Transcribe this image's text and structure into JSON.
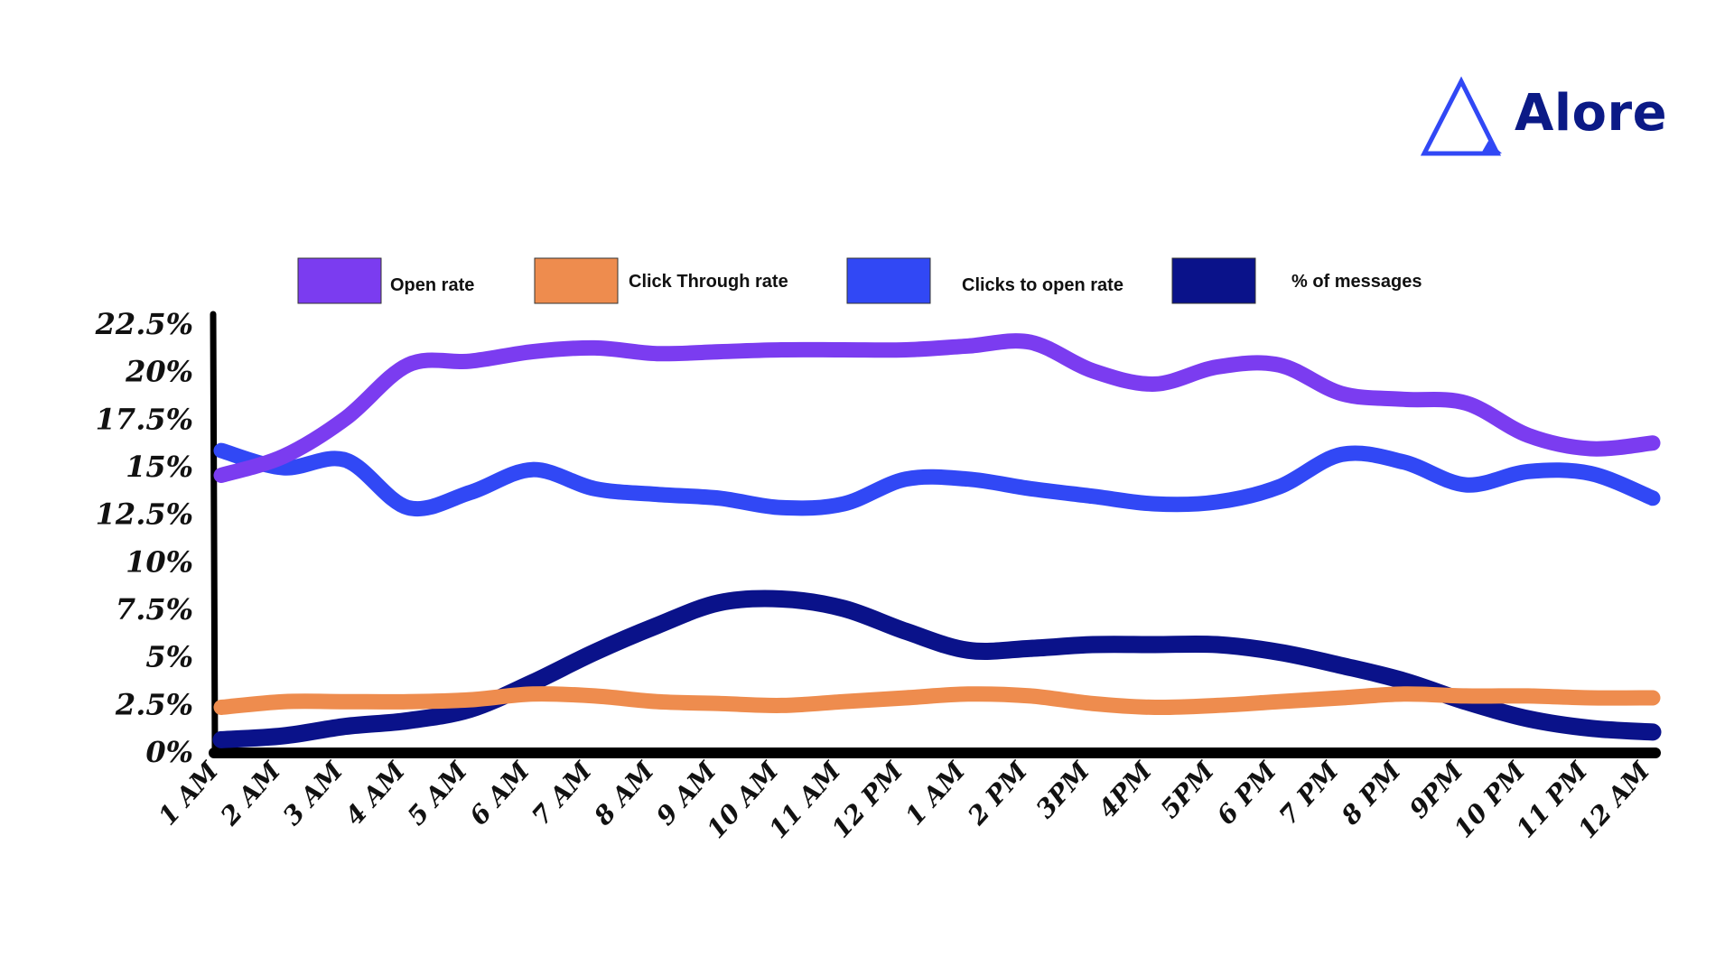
{
  "brand": {
    "name": "Alore",
    "logo_icon": "triangle-logo-icon",
    "color": "#0b1a86"
  },
  "chart_data": {
    "type": "line",
    "title": "",
    "xlabel": "",
    "ylabel": "",
    "x": [
      "1 AM",
      "2 AM",
      "3 AM",
      "4 AM",
      "5 AM",
      "6 AM",
      "7 AM",
      "8 AM",
      "9 AM",
      "10 AM",
      "11 AM",
      "12 PM",
      "1 AM",
      "2 PM",
      "3PM",
      "4PM",
      "5PM",
      "6 PM",
      "7 PM",
      "8 PM",
      "9PM",
      "10 PM",
      "11 PM",
      "12 AM"
    ],
    "ylim": [
      0,
      22.5
    ],
    "yticks": [
      {
        "value": 0,
        "label": "0%"
      },
      {
        "value": 2.5,
        "label": "2.5%"
      },
      {
        "value": 5,
        "label": "5%"
      },
      {
        "value": 7.5,
        "label": "7.5%"
      },
      {
        "value": 10,
        "label": "10%"
      },
      {
        "value": 12.5,
        "label": "12.5%"
      },
      {
        "value": 15,
        "label": "15%"
      },
      {
        "value": 17.5,
        "label": "17.5%"
      },
      {
        "value": 20,
        "label": "20%"
      },
      {
        "value": 22.5,
        "label": "22.5%"
      }
    ],
    "grid": false,
    "legend_position": "top",
    "series": [
      {
        "name": "Open rate",
        "color": "#7b3cf0",
        "values": [
          14.5,
          15.5,
          17.5,
          20.3,
          20.5,
          21.0,
          21.2,
          20.9,
          21.0,
          21.1,
          21.1,
          21.1,
          21.3,
          21.5,
          20.0,
          19.3,
          20.2,
          20.3,
          18.8,
          18.5,
          18.3,
          16.6,
          15.9,
          16.2
        ]
      },
      {
        "name": "Click Through rate",
        "color": "#ee8c4e",
        "values": [
          2.3,
          2.6,
          2.6,
          2.6,
          2.7,
          3.0,
          2.9,
          2.6,
          2.5,
          2.4,
          2.6,
          2.8,
          3.0,
          2.9,
          2.5,
          2.3,
          2.4,
          2.6,
          2.8,
          3.0,
          2.9,
          2.9,
          2.8,
          2.8
        ]
      },
      {
        "name": "Clicks to open rate",
        "color": "#3148f5",
        "values": [
          15.8,
          14.9,
          15.3,
          12.8,
          13.6,
          14.8,
          13.8,
          13.5,
          13.3,
          12.8,
          13.0,
          14.3,
          14.3,
          13.8,
          13.4,
          13.0,
          13.1,
          13.9,
          15.6,
          15.2,
          14.0,
          14.7,
          14.6,
          13.3
        ]
      },
      {
        "name": "% of messages",
        "color": "#0a128a",
        "values": [
          0.6,
          0.8,
          1.3,
          1.6,
          2.2,
          3.6,
          5.2,
          6.6,
          7.8,
          8.0,
          7.5,
          6.3,
          5.3,
          5.4,
          5.6,
          5.6,
          5.6,
          5.2,
          4.5,
          3.7,
          2.6,
          1.7,
          1.2,
          1.0
        ]
      }
    ]
  }
}
